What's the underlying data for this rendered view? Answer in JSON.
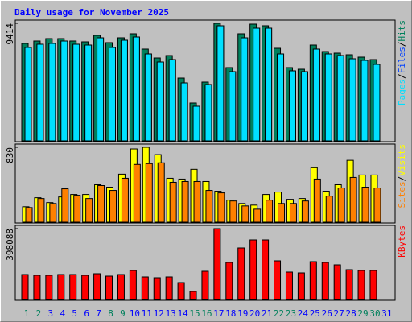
{
  "title": "Daily usage for November 2025",
  "legend_separator": "/",
  "chart_data": [
    {
      "type": "bar",
      "ylim": [
        0,
        9414
      ],
      "yticks": [
        9414
      ],
      "series": [
        {
          "name": "Hits",
          "color": "#00805c",
          "values": [
            7802,
            7996,
            8189,
            8189,
            7996,
            7931,
            8447,
            7867,
            8253,
            8576,
            7351,
            6641,
            6835,
            5029,
            3031,
            4707,
            9414,
            5868,
            8576,
            9350,
            9221,
            7415,
            5868,
            5739,
            7673,
            7157,
            7028,
            6899,
            6706,
            6512,
            0
          ]
        },
        {
          "name": "Files",
          "color": "#0040ff",
          "values": [
            7480,
            7738,
            7802,
            7996,
            7738,
            7673,
            8253,
            7480,
            8060,
            8318,
            6964,
            6319,
            6512,
            4643,
            2773,
            4514,
            9221,
            5545,
            8253,
            9027,
            9027,
            6964,
            5610,
            5545,
            7351,
            6964,
            6835,
            6577,
            6448,
            6126,
            0
          ]
        },
        {
          "name": "Pages",
          "color": "#00e0ff",
          "values": [
            7480,
            7738,
            7802,
            7996,
            7738,
            7673,
            8253,
            7480,
            8060,
            8318,
            6964,
            6319,
            6512,
            4643,
            2773,
            4514,
            9221,
            5545,
            8253,
            9027,
            9027,
            6964,
            5610,
            5545,
            7351,
            6964,
            6835,
            6577,
            6448,
            6126,
            0
          ]
        }
      ]
    },
    {
      "type": "bar",
      "ylim": [
        0,
        830
      ],
      "yticks": [
        830
      ],
      "series": [
        {
          "name": "Visits",
          "color": "#ffff00",
          "values": [
            171,
            271,
            217,
            280,
            307,
            307,
            415,
            388,
            532,
            812,
            830,
            749,
            487,
            478,
            586,
            451,
            343,
            244,
            207,
            189,
            307,
            334,
            253,
            262,
            604,
            343,
            415,
            686,
            523,
            523,
            0
          ]
        },
        {
          "name": "Sites",
          "color": "#ff8000",
          "values": [
            162,
            262,
            207,
            370,
            298,
            262,
            406,
            352,
            487,
            640,
            649,
            658,
            442,
            451,
            451,
            352,
            325,
            235,
            180,
            144,
            244,
            207,
            207,
            235,
            478,
            289,
            379,
            496,
            388,
            379,
            0
          ]
        }
      ]
    },
    {
      "type": "bar",
      "ylim": [
        0,
        398088
      ],
      "yticks": [
        398088
      ],
      "categories": [
        "1",
        "2",
        "3",
        "4",
        "5",
        "6",
        "7",
        "8",
        "9",
        "10",
        "11",
        "12",
        "13",
        "14",
        "15",
        "16",
        "17",
        "18",
        "19",
        "20",
        "21",
        "22",
        "23",
        "24",
        "25",
        "26",
        "27",
        "28",
        "29",
        "30",
        "31"
      ],
      "category_colors": [
        "#00805c",
        "#00805c",
        "#0000ff",
        "#0000ff",
        "#0000ff",
        "#0000ff",
        "#0000ff",
        "#00805c",
        "#00805c",
        "#0000ff",
        "#0000ff",
        "#0000ff",
        "#0000ff",
        "#0000ff",
        "#00805c",
        "#00805c",
        "#0000ff",
        "#0000ff",
        "#0000ff",
        "#0000ff",
        "#0000ff",
        "#00805c",
        "#00805c",
        "#0000ff",
        "#0000ff",
        "#0000ff",
        "#0000ff",
        "#0000ff",
        "#00805c",
        "#00805c",
        "#0000ff"
      ],
      "series": [
        {
          "name": "KBytes",
          "color": "#ff0000",
          "values": [
            140235,
            135711,
            135711,
            140235,
            140235,
            135711,
            144758,
            131187,
            140235,
            162853,
            126663,
            122140,
            126663,
            94997,
            45237,
            158330,
            398088,
            208090,
            289517,
            334754,
            334754,
            217137,
            153806,
            149282,
            212614,
            208090,
            194518,
            167377,
            162853,
            162853,
            0
          ]
        }
      ]
    }
  ]
}
